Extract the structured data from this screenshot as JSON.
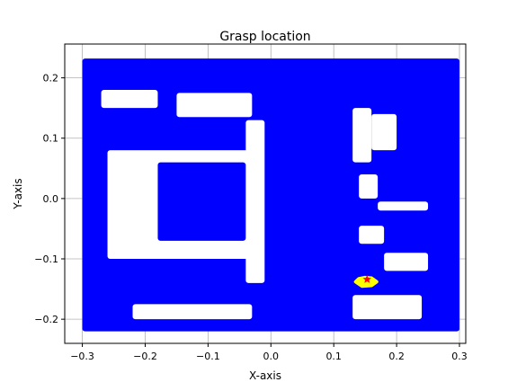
{
  "chart_data": {
    "type": "scatter",
    "title": "Grasp location",
    "xlabel": "X-axis",
    "ylabel": "Y-axis",
    "xlim": [
      -0.328,
      0.31
    ],
    "ylim": [
      -0.24,
      0.256
    ],
    "grid": true,
    "xticks": [
      -0.3,
      -0.2,
      -0.1,
      0.0,
      0.1,
      0.2,
      0.3
    ],
    "xtick_labels": [
      "−0.3",
      "−0.2",
      "−0.1",
      "0.0",
      "0.1",
      "0.2",
      "0.3"
    ],
    "yticks": [
      -0.2,
      -0.1,
      0.0,
      0.1,
      0.2
    ],
    "ytick_labels": [
      "−0.2",
      "−0.1",
      "0.0",
      "0.1",
      "0.2"
    ],
    "series": [
      {
        "marker": "point-cloud",
        "color": "#0000ff",
        "extent": {
          "x": [
            -0.3,
            0.3
          ],
          "y": [
            -0.22,
            0.232
          ]
        },
        "voids": [
          {
            "x": [
              -0.27,
              -0.18
            ],
            "y": [
              0.15,
              0.18
            ]
          },
          {
            "x": [
              -0.15,
              -0.03
            ],
            "y": [
              0.135,
              0.175
            ]
          },
          {
            "x": [
              -0.26,
              -0.02
            ],
            "y": [
              -0.1,
              0.08
            ]
          },
          {
            "x": [
              -0.04,
              -0.01
            ],
            "y": [
              -0.14,
              0.13
            ]
          },
          {
            "x": [
              0.13,
              0.16
            ],
            "y": [
              0.06,
              0.15
            ]
          },
          {
            "x": [
              0.16,
              0.2
            ],
            "y": [
              0.08,
              0.14
            ]
          },
          {
            "x": [
              0.14,
              0.17
            ],
            "y": [
              0.0,
              0.04
            ]
          },
          {
            "x": [
              0.17,
              0.25
            ],
            "y": [
              -0.02,
              -0.005
            ]
          },
          {
            "x": [
              0.14,
              0.18
            ],
            "y": [
              -0.075,
              -0.045
            ]
          },
          {
            "x": [
              0.18,
              0.25
            ],
            "y": [
              -0.12,
              -0.09
            ]
          },
          {
            "x": [
              -0.22,
              -0.03
            ],
            "y": [
              -0.2,
              -0.175
            ]
          },
          {
            "x": [
              0.13,
              0.24
            ],
            "y": [
              -0.2,
              -0.16
            ]
          }
        ],
        "inner_block": {
          "x": [
            -0.18,
            -0.04
          ],
          "y": [
            -0.07,
            0.06
          ]
        }
      },
      {
        "marker": "patch",
        "color": "#ffff00",
        "points": [
          [
            0.135,
            -0.138
          ],
          [
            0.14,
            -0.133
          ],
          [
            0.15,
            -0.131
          ],
          [
            0.16,
            -0.132
          ],
          [
            0.168,
            -0.138
          ],
          [
            0.16,
            -0.144
          ],
          [
            0.145,
            -0.145
          ]
        ]
      },
      {
        "marker": "star",
        "color": "#ff0000",
        "points": [
          [
            0.153,
            -0.134
          ]
        ]
      }
    ]
  }
}
